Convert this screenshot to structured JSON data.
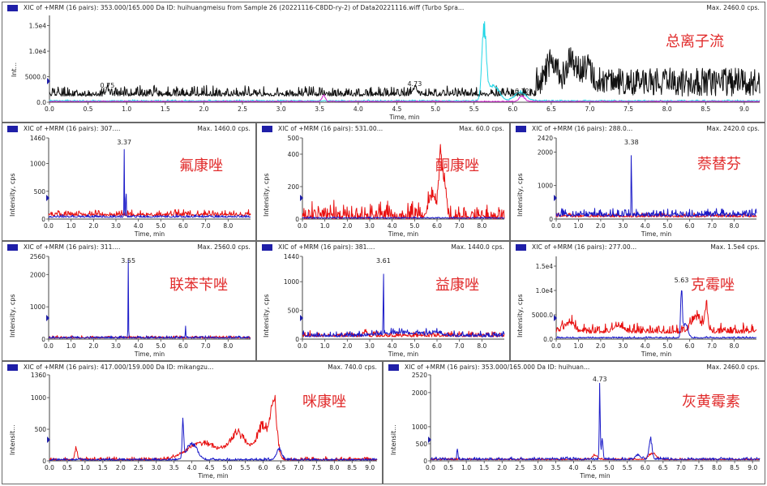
{
  "colors": {
    "black": "#111111",
    "cyan": "#22d6e6",
    "magenta": "#cc22cc",
    "red": "#e81010",
    "blue": "#1a1ac8",
    "marker": "#1f1fa8",
    "label": "#e12c2c"
  },
  "panels": [
    {
      "id": "tic",
      "title": "XIC of +MRM (16 pairs): 353.000/165.000 Da ID: huihuangmeisu from Sample 26 (20221116-C8DD-ry-2) of Data20221116.wiff (Turbo Spra...",
      "max": "Max. 2460.0 cps.",
      "name": "总离子流",
      "ylabel": "Int...",
      "xlabel": "Time, min",
      "yticks": [
        "0.0",
        "5000.0",
        "1.0e4",
        "1.5e4"
      ],
      "xticks": [
        "0.0",
        "0.5",
        "1.0",
        "1.5",
        "2.0",
        "2.5",
        "3.0",
        "3.5",
        "4.0",
        "4.5",
        "5.0",
        "5.5",
        "6.0",
        "6.5",
        "7.0",
        "7.5",
        "8.0",
        "8.5",
        "9.0"
      ],
      "peaks": [
        {
          "label": "0.75",
          "x": 0.75
        },
        {
          "label": "4.73",
          "x": 4.73
        },
        {
          "label": "6.12",
          "x": 6.12
        }
      ]
    },
    {
      "id": "p1",
      "title": "XIC of +MRM (16 pairs): 307....",
      "max": "Max. 1460.0 cps.",
      "name": "氟康唑",
      "ylabel": "Intensity, cps",
      "xlabel": "Time, min",
      "yticks": [
        "0",
        "500",
        "1000",
        "1460"
      ],
      "xticks": [
        "0.0",
        "1.0",
        "2.0",
        "3.0",
        "4.0",
        "5.0",
        "6.0",
        "7.0",
        "8.0"
      ],
      "peaks": [
        {
          "label": "3.37",
          "x": 3.37
        }
      ]
    },
    {
      "id": "p2",
      "title": "XIC of +MRM (16 pairs): 531.00...",
      "max": "Max. 60.0 cps.",
      "name": "酮康唑",
      "ylabel": "Intensity, cps",
      "xlabel": "Time, min",
      "yticks": [
        "0",
        "200",
        "400",
        "500"
      ],
      "xticks": [
        "0.0",
        "1.0",
        "2.0",
        "3.0",
        "4.0",
        "5.0",
        "6.0",
        "7.0",
        "8.0"
      ],
      "peaks": []
    },
    {
      "id": "p3",
      "title": "XIC of +MRM (16 pairs): 288.0...",
      "max": "Max. 2420.0 cps.",
      "name": "萘替芬",
      "ylabel": "Intensity, cps",
      "xlabel": "Time, min",
      "yticks": [
        "0",
        "1000",
        "2000",
        "2420"
      ],
      "xticks": [
        "0.0",
        "1.0",
        "2.0",
        "3.0",
        "4.0",
        "5.0",
        "6.0",
        "7.0",
        "8.0"
      ],
      "peaks": [
        {
          "label": "3.38",
          "x": 3.38
        }
      ]
    },
    {
      "id": "p4",
      "title": "XIC of +MRM (16 pairs): 311....",
      "max": "Max. 2560.0 cps.",
      "name": "联苯苄唑",
      "ylabel": "Intensity, cps",
      "xlabel": "Time, min",
      "yticks": [
        "0",
        "1000",
        "2000",
        "2560"
      ],
      "xticks": [
        "0.0",
        "1.0",
        "2.0",
        "3.0",
        "4.0",
        "5.0",
        "6.0",
        "7.0",
        "8.0"
      ],
      "peaks": [
        {
          "label": "3.55",
          "x": 3.55
        }
      ]
    },
    {
      "id": "p5",
      "title": "XIC of +MRM (16 pairs): 381....",
      "max": "Max. 1440.0 cps.",
      "name": "益康唑",
      "ylabel": "Intensity, cps",
      "xlabel": "Time, min",
      "yticks": [
        "0",
        "500",
        "1000",
        "1440"
      ],
      "xticks": [
        "0.0",
        "1.0",
        "2.0",
        "3.0",
        "4.0",
        "5.0",
        "6.0",
        "7.0",
        "8.0"
      ],
      "peaks": [
        {
          "label": "3.61",
          "x": 3.61
        }
      ]
    },
    {
      "id": "p6",
      "title": "XIC of +MRM (16 pairs): 277.00...",
      "max": "Max. 1.5e4 cps.",
      "name": "克霉唑",
      "ylabel": "Intensity, cps",
      "xlabel": "Time, min",
      "yticks": [
        "0.0",
        "5000.0",
        "1.0e4",
        "1.5e4"
      ],
      "xticks": [
        "0.0",
        "1.0",
        "2.0",
        "3.0",
        "4.0",
        "5.0",
        "6.0",
        "7.0",
        "8.0"
      ],
      "peaks": [
        {
          "label": "5.63",
          "x": 5.63
        }
      ]
    },
    {
      "id": "p7",
      "title": "XIC of +MRM (16 pairs): 417.000/159.000 Da ID: mikangzu...",
      "max": "Max. 740.0 cps.",
      "name": "咪康唑",
      "ylabel": "Intensit...",
      "xlabel": "Time, min",
      "yticks": [
        "0",
        "500",
        "1000",
        "1360"
      ],
      "xticks": [
        "0.0",
        "0.5",
        "1.0",
        "1.5",
        "2.0",
        "2.5",
        "3.0",
        "3.5",
        "4.0",
        "4.5",
        "5.0",
        "5.5",
        "6.0",
        "6.5",
        "7.0",
        "7.5",
        "8.0",
        "8.5",
        "9.0"
      ],
      "peaks": []
    },
    {
      "id": "p8",
      "title": "XIC of +MRM (16 pairs): 353.000/165.000 Da ID: huihuan...",
      "max": "Max. 2460.0 cps.",
      "name": "灰黄霉素",
      "ylabel": "Intensit...",
      "xlabel": "Time, min",
      "yticks": [
        "0",
        "500",
        "1000",
        "2000",
        "2520"
      ],
      "xticks": [
        "0.0",
        "0.5",
        "1.0",
        "1.5",
        "2.0",
        "2.5",
        "3.0",
        "3.5",
        "4.0",
        "4.5",
        "5.0",
        "5.5",
        "6.0",
        "6.5",
        "7.0",
        "7.5",
        "8.0",
        "8.5",
        "9.0"
      ],
      "peaks": [
        {
          "label": "4.73",
          "x": 4.73
        }
      ]
    }
  ],
  "chart_data": [
    {
      "type": "line",
      "panel": "tic",
      "xlim": [
        0,
        9.2
      ],
      "ylim": [
        0,
        17000
      ],
      "y_axis_ticks": [
        0,
        5000,
        10000,
        15000
      ],
      "series": [
        {
          "color": "black",
          "baseline": 1200,
          "noise": 2200,
          "peaks": [
            {
              "x": 0.75,
              "height": 1200,
              "width": 0.03
            },
            {
              "x": 4.73,
              "height": 1500,
              "width": 0.04
            },
            {
              "x": 6.5,
              "height": 4500,
              "width": 0.1
            },
            {
              "x": 6.75,
              "height": 5000,
              "width": 0.08
            },
            {
              "x": 6.95,
              "height": 4000,
              "width": 0.1
            }
          ],
          "noise_after_6_3": 5500
        },
        {
          "color": "cyan",
          "baseline": 200,
          "noise": 300,
          "peaks": [
            {
              "x": 5.63,
              "height": 15000,
              "width": 0.04
            },
            {
              "x": 5.75,
              "height": 3500,
              "width": 0.1
            },
            {
              "x": 6.1,
              "height": 2000,
              "width": 0.1
            }
          ]
        },
        {
          "color": "magenta",
          "baseline": 100,
          "noise": 200,
          "peaks": [
            {
              "x": 3.55,
              "height": 1500,
              "width": 0.03
            },
            {
              "x": 6.12,
              "height": 1200,
              "width": 0.05
            }
          ]
        }
      ]
    },
    {
      "type": "line",
      "panel": "p1",
      "xlim": [
        0,
        9.0
      ],
      "ylim": [
        0,
        1460
      ],
      "y_axis_ticks": [
        0,
        500,
        1000,
        1460
      ],
      "series": [
        {
          "color": "red",
          "baseline": 60,
          "noise": 120,
          "peaks": []
        },
        {
          "color": "blue",
          "baseline": 30,
          "noise": 60,
          "peaks": [
            {
              "x": 3.37,
              "height": 1460,
              "width": 0.015
            },
            {
              "x": 3.45,
              "height": 600,
              "width": 0.02
            }
          ]
        }
      ]
    },
    {
      "type": "line",
      "panel": "p2",
      "xlim": [
        0,
        9.0
      ],
      "ylim": [
        0,
        500
      ],
      "y_axis_ticks": [
        0,
        200,
        400,
        500
      ],
      "series": [
        {
          "color": "red",
          "baseline": 0,
          "noise": 120,
          "peaks": [
            {
              "x": 5.8,
              "height": 150,
              "width": 0.25
            },
            {
              "x": 6.15,
              "height": 380,
              "width": 0.08
            },
            {
              "x": 6.3,
              "height": 250,
              "width": 0.12
            }
          ]
        },
        {
          "color": "blue",
          "baseline": 5,
          "noise": 10,
          "peaks": []
        }
      ]
    },
    {
      "type": "line",
      "panel": "p3",
      "xlim": [
        0,
        9.0
      ],
      "ylim": [
        0,
        2420
      ],
      "y_axis_ticks": [
        0,
        1000,
        2000,
        2420
      ],
      "series": [
        {
          "color": "red",
          "baseline": 60,
          "noise": 150,
          "peaks": []
        },
        {
          "color": "blue",
          "baseline": 80,
          "noise": 260,
          "peaks": [
            {
              "x": 3.38,
              "height": 2420,
              "width": 0.015
            }
          ]
        }
      ]
    },
    {
      "type": "line",
      "panel": "p4",
      "xlim": [
        0,
        9.0
      ],
      "ylim": [
        0,
        2560
      ],
      "y_axis_ticks": [
        0,
        1000,
        2000,
        2560
      ],
      "series": [
        {
          "color": "red",
          "baseline": 30,
          "noise": 90,
          "peaks": []
        },
        {
          "color": "blue",
          "baseline": 30,
          "noise": 80,
          "peaks": [
            {
              "x": 3.55,
              "height": 2560,
              "width": 0.015
            },
            {
              "x": 6.1,
              "height": 450,
              "width": 0.015
            }
          ]
        }
      ]
    },
    {
      "type": "line",
      "panel": "p5",
      "xlim": [
        0,
        9.0
      ],
      "ylim": [
        0,
        1440
      ],
      "y_axis_ticks": [
        0,
        500,
        1000,
        1440
      ],
      "series": [
        {
          "color": "red",
          "baseline": 40,
          "noise": 110,
          "peaks": [
            {
              "x": 2.8,
              "height": 80,
              "width": 0.1
            }
          ]
        },
        {
          "color": "blue",
          "baseline": 40,
          "noise": 120,
          "peaks": [
            {
              "x": 3.61,
              "height": 1440,
              "width": 0.015
            },
            {
              "x": 4.5,
              "height": 60,
              "width": 1.2
            },
            {
              "x": 6.0,
              "height": 60,
              "width": 0.3
            }
          ]
        }
      ]
    },
    {
      "type": "line",
      "panel": "p6",
      "xlim": [
        0,
        9.0
      ],
      "ylim": [
        0,
        17000
      ],
      "y_axis_ticks": [
        0,
        5000,
        10000,
        15000
      ],
      "series": [
        {
          "color": "red",
          "baseline": 1200,
          "noise": 2400,
          "peaks": [
            {
              "x": 0.6,
              "height": 2000,
              "width": 0.3
            },
            {
              "x": 2.8,
              "height": 1500,
              "width": 0.3
            },
            {
              "x": 6.3,
              "height": 3500,
              "width": 0.3
            },
            {
              "x": 6.75,
              "height": 5500,
              "width": 0.1
            }
          ]
        },
        {
          "color": "blue",
          "baseline": 200,
          "noise": 400,
          "peaks": [
            {
              "x": 5.63,
              "height": 11000,
              "width": 0.05
            },
            {
              "x": 5.8,
              "height": 3500,
              "width": 0.15
            }
          ]
        }
      ]
    },
    {
      "type": "line",
      "panel": "p7",
      "xlim": [
        0,
        9.2
      ],
      "ylim": [
        0,
        1360
      ],
      "y_axis_ticks": [
        0,
        500,
        1000,
        1360
      ],
      "series": [
        {
          "color": "red",
          "baseline": 10,
          "noise": 60,
          "peaks": [
            {
              "x": 0.75,
              "height": 200,
              "width": 0.05
            },
            {
              "x": 4.3,
              "height": 300,
              "width": 0.6
            },
            {
              "x": 5.3,
              "height": 450,
              "width": 0.35
            },
            {
              "x": 6.0,
              "height": 600,
              "width": 0.25
            },
            {
              "x": 6.3,
              "height": 1000,
              "width": 0.12
            }
          ]
        },
        {
          "color": "blue",
          "baseline": 10,
          "noise": 40,
          "peaks": [
            {
              "x": 3.75,
              "height": 700,
              "width": 0.03
            },
            {
              "x": 4.0,
              "height": 300,
              "width": 0.2
            },
            {
              "x": 6.45,
              "height": 200,
              "width": 0.1
            }
          ]
        }
      ]
    },
    {
      "type": "line",
      "panel": "p8",
      "xlim": [
        0,
        9.2
      ],
      "ylim": [
        0,
        2520
      ],
      "y_axis_ticks": [
        0,
        500,
        1000,
        2000,
        2520
      ],
      "series": [
        {
          "color": "red",
          "baseline": 30,
          "noise": 60,
          "peaks": [
            {
              "x": 4.6,
              "height": 150,
              "width": 0.1
            },
            {
              "x": 6.2,
              "height": 200,
              "width": 0.15
            }
          ]
        },
        {
          "color": "blue",
          "baseline": 30,
          "noise": 90,
          "peaks": [
            {
              "x": 0.75,
              "height": 350,
              "width": 0.02
            },
            {
              "x": 4.73,
              "height": 2300,
              "width": 0.02
            },
            {
              "x": 4.8,
              "height": 700,
              "width": 0.03
            },
            {
              "x": 5.8,
              "height": 150,
              "width": 0.1
            },
            {
              "x": 6.15,
              "height": 700,
              "width": 0.06
            }
          ]
        }
      ]
    }
  ]
}
